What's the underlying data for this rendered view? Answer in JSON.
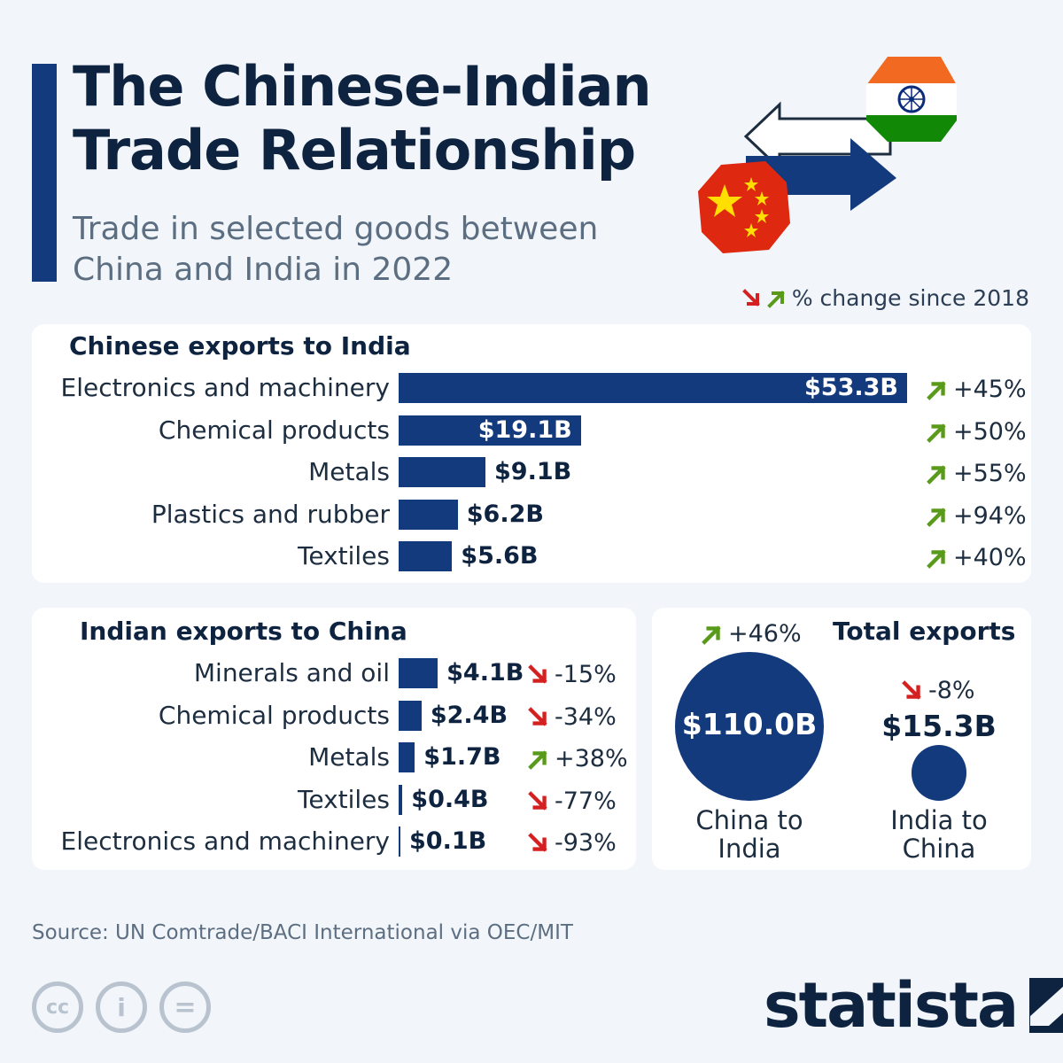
{
  "title_line1": "The Chinese-Indian",
  "title_line2": "Trade Relationship",
  "subtitle_line1": "Trade in selected goods between",
  "subtitle_line2": "China and India in 2022",
  "legend_text": "% change since 2018",
  "colors": {
    "bar": "#133a7c",
    "up": "#5a9a1a",
    "down": "#d42020",
    "text": "#0d2340"
  },
  "chart_data": [
    {
      "type": "bar",
      "title": "Chinese exports to India",
      "unit": "billion USD",
      "categories": [
        "Electronics and machinery",
        "Chemical products",
        "Metals",
        "Plastics and rubber",
        "Textiles"
      ],
      "values": [
        53.3,
        19.1,
        9.1,
        6.2,
        5.6
      ],
      "value_labels": [
        "$53.3B",
        "$19.1B",
        "$9.1B",
        "$6.2B",
        "$5.6B"
      ],
      "change_since_2018": [
        "+45%",
        "+50%",
        "+55%",
        "+94%",
        "+40%"
      ],
      "change_direction": [
        "up",
        "up",
        "up",
        "up",
        "up"
      ]
    },
    {
      "type": "bar",
      "title": "Indian exports to China",
      "unit": "billion USD",
      "categories": [
        "Minerals and oil",
        "Chemical products",
        "Metals",
        "Textiles",
        "Electronics and machinery"
      ],
      "values": [
        4.1,
        2.4,
        1.7,
        0.4,
        0.1
      ],
      "value_labels": [
        "$4.1B",
        "$2.4B",
        "$1.7B",
        "$0.4B",
        "$0.1B"
      ],
      "change_since_2018": [
        "-15%",
        "-34%",
        "+38%",
        "-77%",
        "-93%"
      ],
      "change_direction": [
        "down",
        "down",
        "up",
        "down",
        "down"
      ]
    },
    {
      "type": "bubble",
      "title": "Total exports",
      "unit": "billion USD",
      "categories": [
        "China to India",
        "India to China"
      ],
      "values": [
        110.0,
        15.3
      ],
      "value_labels": [
        "$110.0B",
        "$15.3B"
      ],
      "change_since_2018": [
        "+46%",
        "-8%"
      ],
      "change_direction": [
        "up",
        "down"
      ]
    }
  ],
  "total_names": [
    "China to",
    "India",
    "India to",
    "China"
  ],
  "source": "Source: UN Comtrade/BACI International via OEC/MIT",
  "license_icons": [
    "cc",
    "i",
    "="
  ],
  "brand": "statista"
}
